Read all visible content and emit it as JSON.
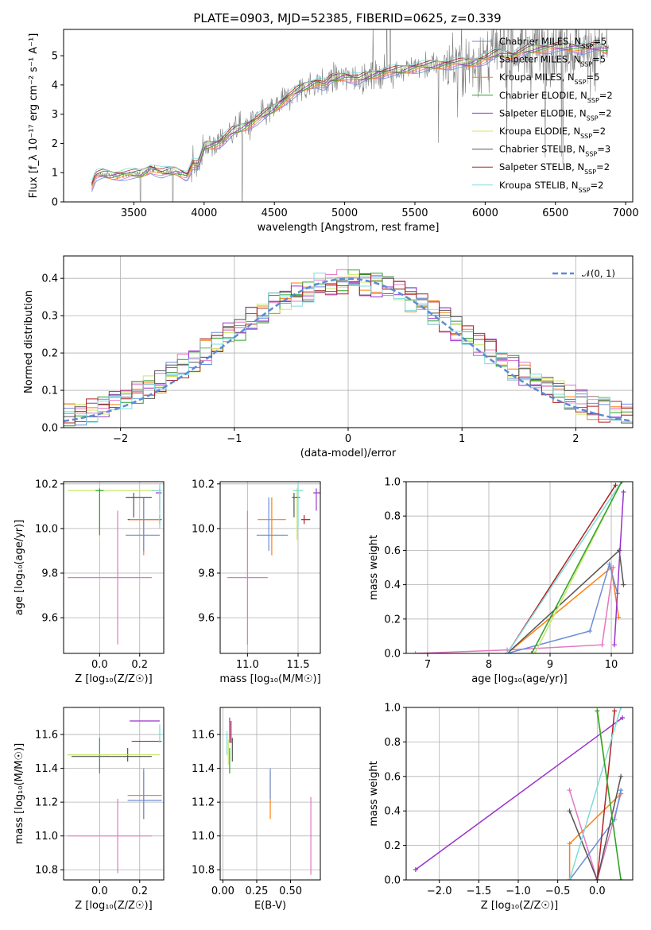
{
  "figure_title": "PLATE=0903, MJD=52385, FIBERID=0625, z=0.339",
  "colors": {
    "Chabrier MILES": "#6a8fd8",
    "Salpeter MILES": "#e377c2",
    "Kroupa MILES": "#ff7f0e",
    "Chabrier ELODIE": "#2ca02c",
    "Salpeter ELODIE": "#9932cc",
    "Kroupa ELODIE": "#c8e86a",
    "Chabrier STELIB": "#555555",
    "Salpeter STELIB": "#b22222",
    "Kroupa STELIB": "#7fdbdb",
    "data": "#808080",
    "normal": "#5b8ad6"
  },
  "chart_data": [
    {
      "id": "spectrum",
      "type": "line",
      "title": "PLATE=0903, MJD=52385, FIBERID=0625, z=0.339",
      "xlabel": "wavelength [Angstrom, rest frame]",
      "ylabel": "Flux [f_λ 10⁻¹⁷ erg cm⁻² s⁻¹ A⁻¹]",
      "xlim": [
        3000,
        7050
      ],
      "ylim": [
        0,
        5.9
      ],
      "xticks": [
        3500,
        4000,
        4500,
        5000,
        5500,
        6000,
        6500,
        7000
      ],
      "yticks": [
        0,
        1,
        2,
        3,
        4,
        5
      ],
      "grid": false,
      "legend_position": "top-right",
      "x_start": 3200,
      "x_end": 6880,
      "continuum": {
        "x": [
          3200,
          3230,
          3280,
          3350,
          3450,
          3550,
          3620,
          3700,
          3800,
          3880,
          3920,
          3960,
          4000,
          4100,
          4200,
          4300,
          4400,
          4500,
          4600,
          4700,
          4800,
          4860,
          4900,
          5000,
          5100,
          5200,
          5300,
          5400,
          5500,
          5600,
          5700,
          5800,
          5900,
          6000,
          6100,
          6200,
          6300,
          6400,
          6500,
          6600,
          6700,
          6800,
          6880
        ],
        "y": [
          0.55,
          0.9,
          0.95,
          0.9,
          0.95,
          0.95,
          1.15,
          1.0,
          1.05,
          0.9,
          1.3,
          1.25,
          1.9,
          2.0,
          2.4,
          2.6,
          2.9,
          3.2,
          3.6,
          3.9,
          4.1,
          4.0,
          4.2,
          4.3,
          4.2,
          4.35,
          4.45,
          4.5,
          4.6,
          4.65,
          4.7,
          4.75,
          4.75,
          4.9,
          5.1,
          5.0,
          5.2,
          5.25,
          5.3,
          5.3,
          5.25,
          5.3,
          5.2
        ]
      },
      "series": [
        {
          "name": "Chabrier MILES, N_SSP=5"
        },
        {
          "name": "Salpeter MILES, N_SSP=5"
        },
        {
          "name": "Kroupa MILES, N_SSP=5"
        },
        {
          "name": "Chabrier ELODIE, N_SSP=2"
        },
        {
          "name": "Salpeter ELODIE, N_SSP=2"
        },
        {
          "name": "Kroupa ELODIE, N_SSP=2"
        },
        {
          "name": "Chabrier STELIB, N_SSP=3"
        },
        {
          "name": "Salpeter STELIB, N_SSP=2"
        },
        {
          "name": "Kroupa STELIB, N_SSP=2"
        }
      ],
      "data_series_name": ""
    },
    {
      "id": "residuals",
      "type": "area",
      "xlabel": "(data-model)/error",
      "ylabel": "Normed distribution",
      "xlim": [
        -2.5,
        2.5
      ],
      "ylim": [
        0,
        0.46
      ],
      "xticks": [
        -2,
        -1,
        0,
        1,
        2
      ],
      "yticks": [
        0.0,
        0.1,
        0.2,
        0.3,
        0.4
      ],
      "grid": true,
      "legend_position": "top-right",
      "reference_curve": {
        "name": "𝒩(0, 1)",
        "mean": 0,
        "sigma": 1
      },
      "bin_width": 0.1
    },
    {
      "id": "age_vs_Z",
      "type": "scatter",
      "xlabel": "Z [log₁₀(Z/Z☉)]",
      "ylabel": "age  [log₁₀(age/yr)]",
      "xlim": [
        -0.18,
        0.32
      ],
      "ylim": [
        9.44,
        10.21
      ],
      "xticks": [
        0.0,
        0.2
      ],
      "yticks": [
        9.6,
        9.8,
        10.0,
        10.2
      ],
      "grid": true
    },
    {
      "id": "age_vs_mass",
      "type": "scatter",
      "xlabel": "mass [log₁₀(M/M☉)]",
      "xlim": [
        10.73,
        11.72
      ],
      "ylim": [
        9.44,
        10.21
      ],
      "xticks": [
        11.0,
        11.5
      ],
      "yticks": [
        9.6,
        9.8,
        10.0,
        10.2
      ],
      "grid": true
    },
    {
      "id": "weight_vs_age",
      "type": "line",
      "xlabel": "age  [log₁₀(age/yr)]",
      "ylabel": "mass weight",
      "xlim": [
        6.65,
        10.35
      ],
      "ylim": [
        0,
        1.0
      ],
      "xticks": [
        7,
        8,
        9,
        10
      ],
      "yticks": [
        0.0,
        0.2,
        0.4,
        0.6,
        0.8,
        1.0
      ],
      "grid": true
    },
    {
      "id": "mass_vs_Z",
      "type": "scatter",
      "xlabel": "Z [log₁₀(Z/Z☉)]",
      "ylabel": "mass [log₁₀(M/M☉)]",
      "xlim": [
        -0.18,
        0.32
      ],
      "ylim": [
        10.74,
        11.76
      ],
      "xticks": [
        0.0,
        0.2
      ],
      "yticks": [
        10.8,
        11.0,
        11.2,
        11.4,
        11.6
      ],
      "grid": true
    },
    {
      "id": "mass_vs_ebv",
      "type": "scatter",
      "xlabel": "E(B-V)",
      "xlim": [
        -0.02,
        0.72
      ],
      "ylim": [
        10.74,
        11.76
      ],
      "xticks": [
        0.0,
        0.25,
        0.5
      ],
      "yticks": [
        10.8,
        11.0,
        11.2,
        11.4,
        11.6
      ],
      "grid": true
    },
    {
      "id": "weight_vs_Z",
      "type": "line",
      "xlabel": "Z [log₁₀(Z/Z☉)]",
      "ylabel": "mass weight",
      "xlim": [
        -2.42,
        0.45
      ],
      "ylim": [
        0,
        1.0
      ],
      "xticks": [
        -2.0,
        -1.5,
        -1.0,
        -0.5,
        0.0
      ],
      "yticks": [
        0.0,
        0.2,
        0.4,
        0.6,
        0.8,
        1.0
      ],
      "grid": true
    }
  ],
  "points": {
    "age_Z": [
      {
        "model": "Kroupa ELODIE",
        "Z": 0.0,
        "age": 10.17,
        "zlo": -0.16,
        "zhi": 0.3,
        "alo": 9.95,
        "ahi": 10.18
      },
      {
        "model": "Chabrier ELODIE",
        "Z": 0.0,
        "age": 10.17,
        "zlo": -0.02,
        "zhi": 0.02,
        "alo": 9.97,
        "ahi": 10.18
      },
      {
        "model": "Chabrier STELIB",
        "Z": 0.17,
        "age": 10.14,
        "zlo": 0.13,
        "zhi": 0.26,
        "alo": 10.05,
        "ahi": 10.16
      },
      {
        "model": "Salpeter ELODIE",
        "Z": 0.3,
        "age": 10.16,
        "zlo": 0.28,
        "zhi": 0.31,
        "alo": 10.08,
        "ahi": 10.18
      },
      {
        "model": "Salpeter STELIB",
        "Z": 0.3,
        "age": 10.04,
        "zlo": 0.14,
        "zhi": 0.31,
        "alo": 10.02,
        "ahi": 10.06
      },
      {
        "model": "Kroupa MILES",
        "Z": 0.22,
        "age": 10.04,
        "zlo": 0.15,
        "zhi": 0.3,
        "alo": 9.88,
        "ahi": 10.14
      },
      {
        "model": "Chabrier MILES",
        "Z": 0.22,
        "age": 9.97,
        "zlo": 0.13,
        "zhi": 0.3,
        "alo": 9.9,
        "ahi": 10.14
      },
      {
        "model": "Kroupa STELIB",
        "Z": 0.3,
        "age": 10.17,
        "zlo": 0.26,
        "zhi": 0.31,
        "alo": 10.0,
        "ahi": 10.2
      },
      {
        "model": "Salpeter MILES",
        "Z": 0.09,
        "age": 9.78,
        "zlo": -0.16,
        "zhi": 0.26,
        "alo": 9.48,
        "ahi": 10.08
      }
    ],
    "age_mass": [
      {
        "model": "Salpeter ELODIE",
        "mass": 11.68,
        "age": 10.16,
        "mlo": 11.65,
        "mhi": 11.72,
        "alo": 10.08,
        "ahi": 10.18
      },
      {
        "model": "Kroupa ELODIE",
        "mass": 11.49,
        "age": 10.17,
        "mlo": 11.45,
        "mhi": 11.55,
        "alo": 9.95,
        "ahi": 10.18
      },
      {
        "model": "Chabrier STELIB",
        "mass": 11.46,
        "age": 10.14,
        "mlo": 11.44,
        "mhi": 11.52,
        "alo": 10.05,
        "ahi": 10.16
      },
      {
        "model": "Salpeter STELIB",
        "mass": 11.56,
        "age": 10.04,
        "mlo": 11.53,
        "mhi": 11.62,
        "alo": 10.02,
        "ahi": 10.06
      },
      {
        "model": "Kroupa MILES",
        "mass": 11.24,
        "age": 10.04,
        "mlo": 11.1,
        "mhi": 11.38,
        "alo": 9.88,
        "ahi": 10.14
      },
      {
        "model": "Chabrier MILES",
        "mass": 11.21,
        "age": 9.97,
        "mlo": 11.09,
        "mhi": 11.4,
        "alo": 9.9,
        "ahi": 10.14
      },
      {
        "model": "Salpeter MILES",
        "mass": 11.0,
        "age": 9.78,
        "mlo": 10.8,
        "mhi": 11.2,
        "alo": 9.48,
        "ahi": 10.08
      },
      {
        "model": "Kroupa STELIB",
        "mass": 11.5,
        "age": 10.17,
        "mlo": 11.45,
        "mhi": 11.55,
        "alo": 10.0,
        "ahi": 10.2
      }
    ],
    "mass_Z": [
      {
        "model": "Salpeter ELODIE",
        "Z": 0.28,
        "mass": 11.68,
        "zlo": 0.15,
        "zhi": 0.3
      },
      {
        "model": "Salpeter STELIB",
        "Z": 0.28,
        "mass": 11.56,
        "zlo": 0.16,
        "zhi": 0.31
      },
      {
        "model": "Chabrier STELIB",
        "Z": 0.14,
        "mass": 11.47,
        "zlo": -0.14,
        "zhi": 0.26,
        "mlo": 11.44,
        "mhi": 11.52
      },
      {
        "model": "Chabrier ELODIE",
        "Z": 0.0,
        "mass": 11.48,
        "zlo": -0.16,
        "zhi": 0.05,
        "mlo": 11.37,
        "mhi": 11.58
      },
      {
        "model": "Kroupa ELODIE",
        "Z": 0.0,
        "mass": 11.48,
        "zlo": -0.16,
        "zhi": 0.3
      },
      {
        "model": "Kroupa MILES",
        "Z": 0.22,
        "mass": 11.24,
        "zlo": 0.14,
        "zhi": 0.31,
        "mlo": 11.1,
        "mhi": 11.38
      },
      {
        "model": "Chabrier MILES",
        "Z": 0.22,
        "mass": 11.21,
        "zlo": 0.14,
        "zhi": 0.31,
        "mlo": 11.1,
        "mhi": 11.4
      },
      {
        "model": "Salpeter MILES",
        "Z": 0.09,
        "mass": 11.0,
        "zlo": -0.16,
        "zhi": 0.26,
        "mlo": 10.78,
        "mhi": 11.22
      },
      {
        "model": "Kroupa STELIB",
        "Z": 0.3,
        "mass": 11.6,
        "zlo": 0.29,
        "zhi": 0.31,
        "mlo": 11.55,
        "mhi": 11.66
      }
    ],
    "mass_ebv": [
      {
        "model": "Salpeter ELODIE",
        "ebv": 0.05,
        "mass": 11.63,
        "mlo": 11.55,
        "mhi": 11.7
      },
      {
        "model": "Salpeter STELIB",
        "ebv": 0.06,
        "mass": 11.62,
        "mlo": 11.55,
        "mhi": 11.68
      },
      {
        "model": "Chabrier STELIB",
        "ebv": 0.07,
        "mass": 11.5,
        "mlo": 11.44,
        "mhi": 11.58
      },
      {
        "model": "Chabrier ELODIE",
        "ebv": 0.05,
        "mass": 11.45,
        "mlo": 11.37,
        "mhi": 11.52
      },
      {
        "model": "Kroupa ELODIE",
        "ebv": 0.04,
        "mass": 11.5,
        "mlo": 11.42,
        "mhi": 11.57
      },
      {
        "model": "Kroupa STELIB",
        "ebv": 0.03,
        "mass": 11.55,
        "mlo": 11.48,
        "mhi": 11.62
      },
      {
        "model": "Kroupa MILES",
        "ebv": 0.35,
        "mass": 11.25,
        "mlo": 11.1,
        "mhi": 11.38
      },
      {
        "model": "Chabrier MILES",
        "ebv": 0.35,
        "mass": 11.3,
        "mlo": 11.22,
        "mhi": 11.4
      },
      {
        "model": "Salpeter MILES",
        "ebv": 0.65,
        "mass": 11.0,
        "mlo": 10.77,
        "mhi": 11.23
      }
    ],
    "weight_age": [
      {
        "model": "Salpeter MILES",
        "x": [
          6.8,
          8.3,
          9.85,
          10.03
        ],
        "y": [
          0.0,
          0.02,
          0.05,
          0.5
        ]
      },
      {
        "model": "Kroupa MILES",
        "x": [
          8.3,
          10.0,
          10.12
        ],
        "y": [
          0.0,
          0.5,
          0.21
        ]
      },
      {
        "model": "Chabrier MILES",
        "x": [
          8.3,
          9.65,
          9.97,
          10.1
        ],
        "y": [
          0.0,
          0.13,
          0.52,
          0.35
        ]
      },
      {
        "model": "Chabrier STELIB",
        "x": [
          8.3,
          10.13,
          10.2
        ],
        "y": [
          0.0,
          0.6,
          0.4
        ]
      },
      {
        "model": "Salpeter STELIB",
        "x": [
          8.3,
          10.07
        ],
        "y": [
          0.0,
          0.98
        ]
      },
      {
        "model": "Kroupa STELIB",
        "x": [
          8.3,
          10.17
        ],
        "y": [
          0.0,
          1.0
        ]
      },
      {
        "model": "Kroupa ELODIE",
        "x": [
          8.75,
          10.17
        ],
        "y": [
          0.0,
          1.0
        ]
      },
      {
        "model": "Chabrier ELODIE",
        "x": [
          8.7,
          10.17
        ],
        "y": [
          0.0,
          1.0
        ]
      },
      {
        "model": "Salpeter ELODIE",
        "x": [
          10.05,
          10.2
        ],
        "y": [
          0.05,
          0.94
        ]
      }
    ],
    "weight_Z": [
      {
        "model": "Salpeter ELODIE",
        "x": [
          -2.3,
          0.32
        ],
        "y": [
          0.06,
          0.94
        ]
      },
      {
        "model": "Salpeter MILES",
        "x": [
          -0.35,
          0.0,
          0.3
        ],
        "y": [
          0.52,
          0.0,
          0.5
        ]
      },
      {
        "model": "Kroupa MILES",
        "x": [
          -0.35,
          -0.35,
          0.3
        ],
        "y": [
          0.0,
          0.21,
          0.5
        ]
      },
      {
        "model": "Chabrier MILES",
        "x": [
          -0.35,
          0.22,
          0.3
        ],
        "y": [
          0.0,
          0.35,
          0.52
        ]
      },
      {
        "model": "Chabrier STELIB",
        "x": [
          -0.35,
          0.0,
          0.3
        ],
        "y": [
          0.4,
          0.0,
          0.6
        ]
      },
      {
        "model": "Salpeter STELIB",
        "x": [
          0.0,
          0.22
        ],
        "y": [
          0.0,
          0.98
        ]
      },
      {
        "model": "Kroupa STELIB",
        "x": [
          -0.35,
          0.3
        ],
        "y": [
          0.0,
          1.0
        ]
      },
      {
        "model": "Kroupa ELODIE",
        "x": [
          0.0,
          0.3
        ],
        "y": [
          1.0,
          0.0
        ]
      },
      {
        "model": "Chabrier ELODIE",
        "x": [
          0.0,
          0.3
        ],
        "y": [
          0.98,
          0.0
        ]
      }
    ]
  }
}
